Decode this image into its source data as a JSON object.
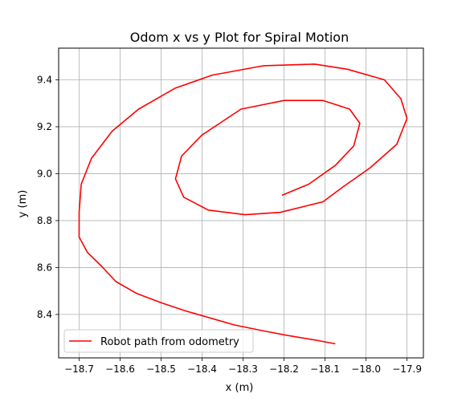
{
  "chart_data": {
    "type": "line",
    "title": "Odom x vs y Plot for Spiral Motion",
    "xlabel": "x (m)",
    "ylabel": "y (m)",
    "xlim": [
      -18.75,
      -17.86
    ],
    "ylim": [
      8.215,
      9.535
    ],
    "xticks": [
      -18.7,
      -18.6,
      -18.5,
      -18.4,
      -18.3,
      -18.2,
      -18.1,
      -18.0,
      -17.9
    ],
    "xtick_labels": [
      "−18.7",
      "−18.6",
      "−18.5",
      "−18.4",
      "−18.3",
      "−18.2",
      "−18.1",
      "−18.0",
      "−17.9"
    ],
    "yticks": [
      8.4,
      8.6,
      8.8,
      9.0,
      9.2,
      9.4
    ],
    "ytick_labels": [
      "8.4",
      "8.6",
      "8.8",
      "9.0",
      "9.2",
      "9.4"
    ],
    "grid": true,
    "legend": {
      "position": "lower-left",
      "entries": [
        "Robot path from odometry"
      ]
    },
    "series": [
      {
        "name": "Robot path from odometry",
        "color": "#ff0000",
        "x": [
          -18.075,
          -18.12,
          -18.19,
          -18.25,
          -18.32,
          -18.38,
          -18.44,
          -18.5,
          -18.56,
          -18.61,
          -18.645,
          -18.68,
          -18.7,
          -18.7,
          -18.695,
          -18.67,
          -18.62,
          -18.555,
          -18.465,
          -18.375,
          -18.25,
          -18.125,
          -18.045,
          -17.955,
          -17.915,
          -17.9,
          -17.925,
          -17.99,
          -18.055,
          -18.105,
          -18.21,
          -18.295,
          -18.385,
          -18.445,
          -18.465,
          -18.45,
          -18.4,
          -18.305,
          -18.2,
          -18.105,
          -18.04,
          -18.015,
          -18.03,
          -18.075,
          -18.14,
          -18.205
        ],
        "y": [
          8.275,
          8.29,
          8.31,
          8.33,
          8.355,
          8.385,
          8.415,
          8.45,
          8.49,
          8.54,
          8.605,
          8.665,
          8.73,
          8.835,
          8.955,
          9.065,
          9.18,
          9.275,
          9.365,
          9.42,
          9.46,
          9.467,
          9.445,
          9.4,
          9.32,
          9.235,
          9.125,
          9.025,
          8.945,
          8.88,
          8.835,
          8.825,
          8.845,
          8.9,
          8.978,
          9.075,
          9.165,
          9.275,
          9.312,
          9.312,
          9.275,
          9.215,
          9.118,
          9.035,
          8.955,
          8.908
        ]
      }
    ]
  }
}
